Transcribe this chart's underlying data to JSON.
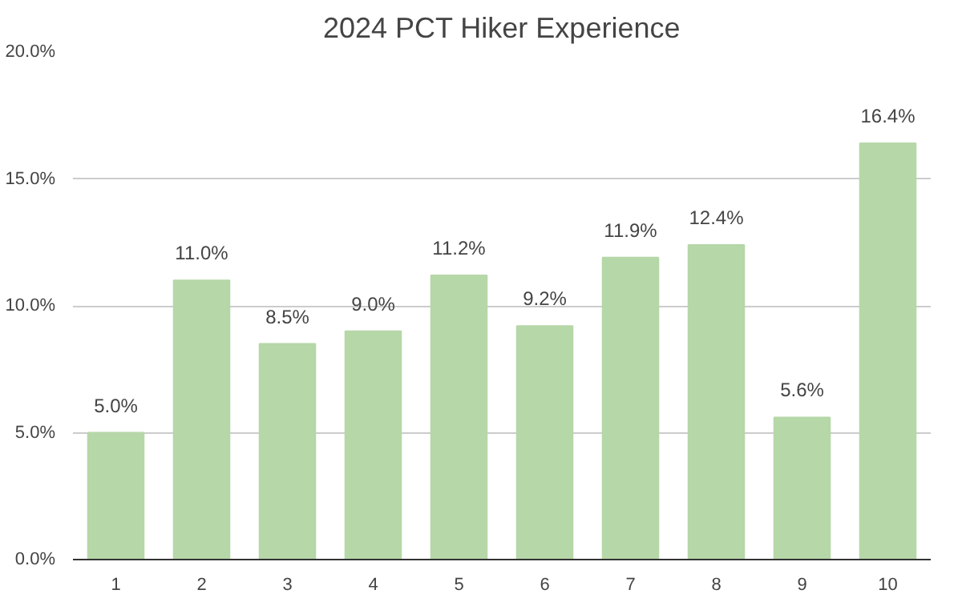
{
  "chart_data": {
    "type": "bar",
    "title": "2024 PCT Hiker Experience",
    "categories": [
      "1",
      "2",
      "3",
      "4",
      "5",
      "6",
      "7",
      "8",
      "9",
      "10"
    ],
    "values": [
      5.0,
      11.0,
      8.5,
      9.0,
      11.2,
      9.2,
      11.9,
      12.4,
      5.6,
      16.4
    ],
    "value_labels": [
      "5.0%",
      "11.0%",
      "8.5%",
      "9.0%",
      "11.2%",
      "9.2%",
      "11.9%",
      "12.4%",
      "5.6%",
      "16.4%"
    ],
    "color": "#b6d7a8",
    "ylim": [
      0,
      20
    ],
    "yticks": [
      {
        "value": 0,
        "label": "0.0%"
      },
      {
        "value": 5,
        "label": "5.0%"
      },
      {
        "value": 10,
        "label": "10.0%"
      },
      {
        "value": 15,
        "label": "15.0%"
      },
      {
        "value": 20,
        "label": "20.0%"
      }
    ],
    "grid": "y"
  }
}
